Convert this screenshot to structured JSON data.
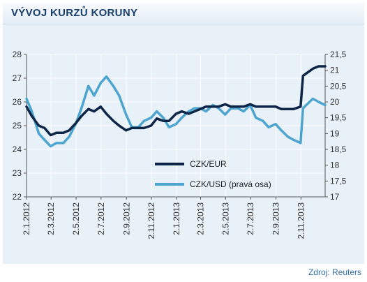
{
  "header": {
    "title": "VÝVOJ KURZŮ KORUNY"
  },
  "source": "Zdroj: Reuters",
  "colors": {
    "eur": "#0d2547",
    "usd": "#4ca4cf",
    "background": "#e9f1f8",
    "grid": "#ffffff"
  },
  "chart_data": {
    "type": "line",
    "title": "VÝVOJ KURZŮ KORUNY",
    "x_range": [
      "2.1.2012",
      "31.12.2013"
    ],
    "x_ticks": [
      "2.1.2012",
      "2.3.2012",
      "2.5.2012",
      "2.7.2012",
      "2.9.2012",
      "2.11.2012",
      "2.1.2013",
      "2.3.2013",
      "2.5.2013",
      "2.7.2013",
      "2.9.2013",
      "2.11.2013"
    ],
    "y_left": {
      "range": [
        22,
        28
      ],
      "ticks": [
        "22",
        "23",
        "24",
        "25",
        "26",
        "27",
        "28"
      ]
    },
    "y_right": {
      "range": [
        17,
        21.5
      ],
      "ticks": [
        "17",
        "17,5",
        "18",
        "18,5",
        "19",
        "19,5",
        "20",
        "20,5",
        "21",
        "21,5"
      ]
    },
    "grid": true,
    "legend_position": "bottom-right inside plot",
    "series": [
      {
        "name": "CZK/EUR",
        "axis": "left",
        "points": [
          [
            "2.1.2012",
            25.8
          ],
          [
            "15.1.2012",
            25.4
          ],
          [
            "1.2.2012",
            25.0
          ],
          [
            "15.2.2012",
            24.9
          ],
          [
            "1.3.2012",
            24.6
          ],
          [
            "15.3.2012",
            24.7
          ],
          [
            "1.4.2012",
            24.7
          ],
          [
            "15.4.2012",
            24.8
          ],
          [
            "1.5.2012",
            25.1
          ],
          [
            "15.5.2012",
            25.4
          ],
          [
            "1.6.2012",
            25.7
          ],
          [
            "15.6.2012",
            25.6
          ],
          [
            "1.7.2012",
            25.8
          ],
          [
            "15.7.2012",
            25.5
          ],
          [
            "1.8.2012",
            25.2
          ],
          [
            "15.8.2012",
            25.0
          ],
          [
            "1.9.2012",
            24.8
          ],
          [
            "15.9.2012",
            24.9
          ],
          [
            "1.10.2012",
            24.9
          ],
          [
            "15.10.2012",
            24.9
          ],
          [
            "1.11.2012",
            25.0
          ],
          [
            "15.11.2012",
            25.3
          ],
          [
            "1.12.2012",
            25.2
          ],
          [
            "15.12.2012",
            25.2
          ],
          [
            "1.1.2013",
            25.5
          ],
          [
            "15.1.2013",
            25.6
          ],
          [
            "1.2.2013",
            25.5
          ],
          [
            "15.2.2013",
            25.6
          ],
          [
            "1.3.2013",
            25.7
          ],
          [
            "15.3.2013",
            25.8
          ],
          [
            "1.4.2013",
            25.8
          ],
          [
            "15.4.2013",
            25.8
          ],
          [
            "1.5.2013",
            25.9
          ],
          [
            "15.5.2013",
            25.8
          ],
          [
            "1.6.2013",
            25.8
          ],
          [
            "15.6.2013",
            25.8
          ],
          [
            "1.7.2013",
            25.9
          ],
          [
            "15.7.2013",
            25.8
          ],
          [
            "1.8.2013",
            25.8
          ],
          [
            "15.8.2013",
            25.8
          ],
          [
            "1.9.2013",
            25.8
          ],
          [
            "15.9.2013",
            25.7
          ],
          [
            "1.10.2013",
            25.7
          ],
          [
            "15.10.2013",
            25.7
          ],
          [
            "1.11.2013",
            25.8
          ],
          [
            "7.11.2013",
            27.1
          ],
          [
            "15.11.2013",
            27.2
          ],
          [
            "1.12.2013",
            27.4
          ],
          [
            "15.12.2013",
            27.5
          ],
          [
            "31.12.2013",
            27.5
          ]
        ]
      },
      {
        "name": "CZK/USD (pravá osa)",
        "axis": "right",
        "points": [
          [
            "2.1.2012",
            20.1
          ],
          [
            "15.1.2012",
            19.7
          ],
          [
            "1.2.2012",
            19.0
          ],
          [
            "15.2.2012",
            18.8
          ],
          [
            "1.3.2012",
            18.6
          ],
          [
            "15.3.2012",
            18.7
          ],
          [
            "1.4.2012",
            18.7
          ],
          [
            "15.4.2012",
            18.9
          ],
          [
            "1.5.2012",
            19.3
          ],
          [
            "15.5.2012",
            19.8
          ],
          [
            "1.6.2012",
            20.5
          ],
          [
            "15.6.2012",
            20.2
          ],
          [
            "1.7.2012",
            20.6
          ],
          [
            "15.7.2012",
            20.8
          ],
          [
            "1.8.2012",
            20.5
          ],
          [
            "15.8.2012",
            20.2
          ],
          [
            "1.9.2012",
            19.6
          ],
          [
            "15.9.2012",
            19.2
          ],
          [
            "1.10.2012",
            19.2
          ],
          [
            "15.10.2012",
            19.4
          ],
          [
            "1.11.2012",
            19.5
          ],
          [
            "15.11.2012",
            19.7
          ],
          [
            "1.12.2012",
            19.5
          ],
          [
            "15.12.2012",
            19.2
          ],
          [
            "1.1.2013",
            19.3
          ],
          [
            "15.1.2013",
            19.5
          ],
          [
            "1.2.2013",
            19.7
          ],
          [
            "15.2.2013",
            19.8
          ],
          [
            "1.3.2013",
            19.8
          ],
          [
            "15.3.2013",
            19.7
          ],
          [
            "1.4.2013",
            19.9
          ],
          [
            "15.4.2013",
            19.8
          ],
          [
            "1.5.2013",
            19.6
          ],
          [
            "15.5.2013",
            19.8
          ],
          [
            "1.6.2013",
            19.8
          ],
          [
            "15.6.2013",
            19.7
          ],
          [
            "1.7.2013",
            19.9
          ],
          [
            "15.7.2013",
            19.5
          ],
          [
            "1.8.2013",
            19.4
          ],
          [
            "15.8.2013",
            19.2
          ],
          [
            "1.9.2013",
            19.3
          ],
          [
            "15.9.2013",
            19.1
          ],
          [
            "1.10.2013",
            18.9
          ],
          [
            "15.10.2013",
            18.8
          ],
          [
            "1.11.2013",
            18.7
          ],
          [
            "7.11.2013",
            19.8
          ],
          [
            "15.11.2013",
            19.9
          ],
          [
            "1.12.2013",
            20.1
          ],
          [
            "15.12.2013",
            20.0
          ],
          [
            "31.12.2013",
            19.9
          ]
        ]
      }
    ]
  }
}
